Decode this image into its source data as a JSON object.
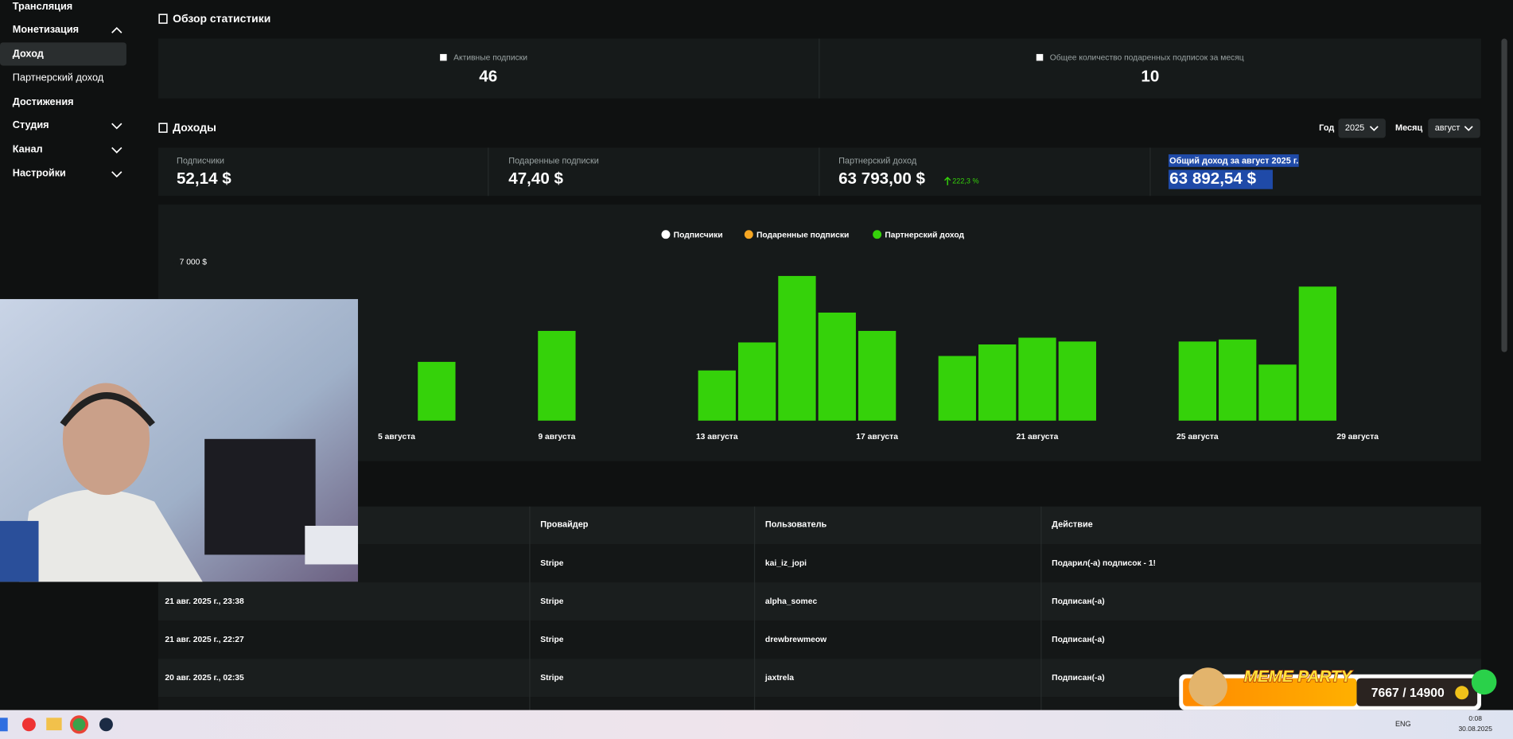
{
  "sidebar": {
    "items": [
      "Трансляция",
      "Монетизация",
      "Доход",
      "Партнерский доход",
      "Достижения",
      "Студия",
      "Канал",
      "Настройки"
    ]
  },
  "overview": {
    "title": "Обзор статистики",
    "stats": [
      {
        "label": "Активные подписки",
        "value": 46
      },
      {
        "label": "Общее количество подаренных подписок за месяц",
        "value": 10
      }
    ]
  },
  "income": {
    "title": "Доходы",
    "year_label": "Год",
    "year": "2025",
    "month_label": "Месяц",
    "month": "август",
    "cards": [
      {
        "label": "Подписчики",
        "value": "52,14 $"
      },
      {
        "label": "Подаренные подписки",
        "value": "47,40 $"
      },
      {
        "label": "Партнерский доход",
        "value": "63 793,00 $",
        "change": "222,3 %"
      },
      {
        "label": "Общий доход за август 2025 г.",
        "value": "63 892,54 $"
      }
    ]
  },
  "chart_data": {
    "type": "bar",
    "stacked": true,
    "grid": false,
    "legend": "top",
    "categories": [
      null,
      null,
      null,
      null,
      "5 августа",
      null,
      null,
      null,
      "9 августа",
      null,
      null,
      null,
      "13 августа",
      null,
      null,
      null,
      "17 августа",
      null,
      null,
      null,
      "21 августа",
      null,
      null,
      null,
      "25 августа",
      null,
      null,
      null,
      "29 августа",
      null,
      null
    ],
    "series": [
      {
        "name": "Подписчики",
        "color": "#ffffff",
        "values": [
          null,
          null,
          null,
          null,
          0,
          0,
          0,
          0,
          0,
          0,
          0,
          0,
          0,
          0,
          0,
          0,
          0,
          0,
          0,
          0,
          0,
          0,
          0,
          0,
          0,
          0,
          0,
          0,
          0,
          0,
          0
        ]
      },
      {
        "name": "Подаренные подписки",
        "color": "#f5a623",
        "values": [
          null,
          null,
          null,
          null,
          0,
          0,
          0,
          0,
          0,
          0,
          0,
          0,
          0,
          0,
          0,
          0,
          0,
          0,
          0,
          0,
          0,
          0,
          0,
          0,
          0,
          0,
          0,
          0,
          0,
          0,
          0
        ]
      },
      {
        "name": "Партнерский доход",
        "color": "#35d20a",
        "values": [
          null,
          null,
          null,
          null,
          0,
          2600,
          0,
          0,
          3970,
          0,
          0,
          0,
          2220,
          3460,
          6400,
          4780,
          3970,
          0,
          2860,
          3370,
          3670,
          3500,
          0,
          0,
          3500,
          3590,
          2480,
          5930,
          0,
          0,
          0
        ]
      }
    ],
    "ylim": [
      0,
      7000
    ],
    "yticks": [
      {
        "value": 7000,
        "label": "7 000 $"
      }
    ]
  },
  "table": {
    "columns": [
      null,
      "Провайдер",
      "Пользователь",
      "Действие"
    ],
    "rows": [
      [
        null,
        "Stripe",
        "kai_iz_jopi",
        "Подарил(-а) подписок - 1!"
      ],
      [
        "21 авг. 2025 г., 23:38",
        "Stripe",
        "alpha_somec",
        "Подписан(-а)"
      ],
      [
        "21 авг. 2025 г., 22:27",
        "Stripe",
        "drewbrewmeow",
        "Подписан(-а)"
      ],
      [
        "20 авг. 2025 г., 02:35",
        "Stripe",
        "jaxtrela",
        "Подписан(-а)"
      ]
    ]
  },
  "widget": {
    "title": "MEME PARTY",
    "progress": "7667 / 14900"
  },
  "taskbar": {
    "lang": "ENG",
    "time": "0:08",
    "date": "30.08.2025"
  }
}
